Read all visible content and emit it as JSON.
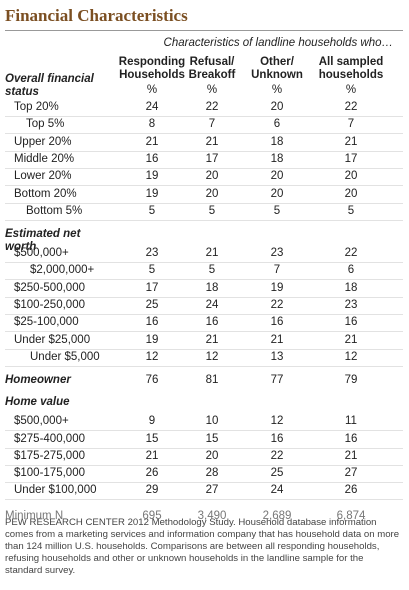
{
  "title": "Financial Characteristics",
  "subtitle": "Characteristics of landline households who…",
  "columns": [
    [
      "Responding",
      "Households"
    ],
    [
      "Refusal/",
      "Breakoff"
    ],
    [
      "Other/",
      "Unknown"
    ],
    [
      "All sampled",
      "households"
    ]
  ],
  "units": [
    "%",
    "%",
    "%",
    "%"
  ],
  "sections": [
    {
      "label": "Overall financial status",
      "rows": [
        {
          "label": "Top 20%",
          "values": [
            24,
            22,
            20,
            22
          ]
        },
        {
          "label": "Top 5%",
          "values": [
            8,
            7,
            6,
            7
          ]
        },
        {
          "label": "Upper 20%",
          "values": [
            21,
            21,
            18,
            21
          ]
        },
        {
          "label": "Middle 20%",
          "values": [
            16,
            17,
            18,
            17
          ]
        },
        {
          "label": "Lower 20%",
          "values": [
            19,
            20,
            20,
            20
          ]
        },
        {
          "label": "Bottom 20%",
          "values": [
            19,
            20,
            20,
            20
          ]
        },
        {
          "label": "Bottom 5%",
          "values": [
            5,
            5,
            5,
            5
          ]
        }
      ]
    },
    {
      "label": "Estimated net worth",
      "rows": [
        {
          "label": "$500,000+",
          "values": [
            23,
            21,
            23,
            22
          ]
        },
        {
          "label": "$2,000,000+",
          "values": [
            5,
            5,
            7,
            6
          ]
        },
        {
          "label": "$250-500,000",
          "values": [
            17,
            18,
            19,
            18
          ]
        },
        {
          "label": "$100-250,000",
          "values": [
            25,
            24,
            22,
            23
          ]
        },
        {
          "label": "$25-100,000",
          "values": [
            16,
            16,
            16,
            16
          ]
        },
        {
          "label": "Under $25,000",
          "values": [
            19,
            21,
            21,
            21
          ]
        },
        {
          "label": "Under $5,000",
          "values": [
            12,
            12,
            13,
            12
          ]
        }
      ]
    },
    {
      "label": "Homeowner",
      "values": [
        76,
        81,
        77,
        79
      ]
    },
    {
      "label": "Home value",
      "rows": [
        {
          "label": "$500,000+",
          "values": [
            9,
            10,
            12,
            11
          ]
        },
        {
          "label": "$275-400,000",
          "values": [
            15,
            15,
            16,
            16
          ]
        },
        {
          "label": "$175-275,000",
          "values": [
            21,
            20,
            22,
            21
          ]
        },
        {
          "label": "$100-175,000",
          "values": [
            26,
            28,
            25,
            27
          ]
        },
        {
          "label": "Under $100,000",
          "values": [
            29,
            27,
            24,
            26
          ]
        }
      ]
    }
  ],
  "minimum_n": {
    "label": "Minimum N",
    "values": [
      "695",
      "3,490",
      "2,689",
      "6,874"
    ]
  },
  "footnote": "PEW RESEARCH CENTER 2012 Methodology Study. Household database information comes from a marketing services and information company that has household data on more than 124 million U.S. households. Comparisons are between all responding households, refusing households and other or unknown households in the landline sample for the standard survey."
}
